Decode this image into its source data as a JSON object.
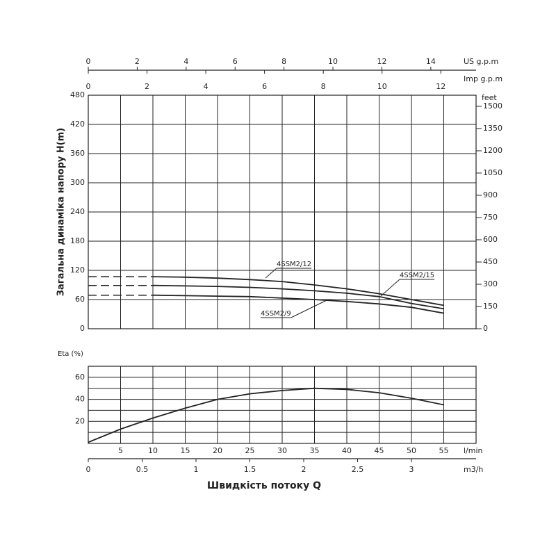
{
  "chart_data": [
    {
      "type": "line",
      "ylabel": "Загальна динаміка напору H(m)",
      "xlim": [
        0,
        60
      ],
      "xgrid": [
        5,
        10,
        15,
        20,
        25,
        30,
        35,
        40,
        45,
        50,
        55
      ],
      "ylim": [
        0,
        480
      ],
      "yticks": [
        0,
        60,
        120,
        180,
        240,
        300,
        360,
        420,
        480
      ],
      "y2label": "feet",
      "y2lim": [
        0,
        1574.8
      ],
      "y2ticks": [
        0,
        150,
        300,
        450,
        600,
        750,
        900,
        1050,
        1200,
        1350,
        1500
      ],
      "top_axes": [
        {
          "label": "US g.p.m",
          "lim": [
            0,
            15.85
          ],
          "ticks": [
            0,
            2,
            4,
            6,
            8,
            10,
            12,
            14
          ]
        },
        {
          "label": "Imp g.p.m",
          "lim": [
            0,
            13.2
          ],
          "ticks": [
            0,
            2,
            4,
            6,
            8,
            10,
            12
          ]
        }
      ],
      "dashed_start": true,
      "x": [
        10,
        15,
        20,
        25,
        30,
        35,
        40,
        45,
        50,
        55
      ],
      "series": [
        {
          "name": "4SSM2/15",
          "color": "#222222",
          "values": [
            107,
            106,
            104,
            101,
            97,
            90,
            82,
            72,
            60,
            48
          ]
        },
        {
          "name": "4SSM2/12",
          "color": "#222222",
          "values": [
            89,
            88,
            87,
            85,
            82,
            78,
            73,
            66,
            52,
            41
          ]
        },
        {
          "name": "4SSM2/9",
          "color": "#222222",
          "values": [
            69,
            68,
            67,
            66,
            63,
            60,
            56,
            51,
            44,
            32
          ]
        }
      ]
    },
    {
      "type": "line",
      "ylabel": "Eta (%)",
      "xlim": [
        0,
        60
      ],
      "xticks": [
        5,
        10,
        15,
        20,
        25,
        30,
        35,
        40,
        45,
        50,
        55
      ],
      "xlabel": "l/min",
      "x2label": "m3/h",
      "x2lim": [
        0,
        3.6
      ],
      "x2ticks": [
        0,
        0.5,
        1,
        1.5,
        2,
        2.5,
        3
      ],
      "ylim": [
        0,
        70
      ],
      "yticks": [
        20,
        40,
        60
      ],
      "minor_grid": [
        10,
        30,
        50
      ],
      "title": "Швидкість потоку Q",
      "x": [
        0,
        5,
        10,
        15,
        20,
        25,
        30,
        35,
        40,
        45,
        50,
        55
      ],
      "series": [
        {
          "color": "#222222",
          "values": [
            1,
            13,
            23,
            32,
            40,
            45,
            48,
            50,
            49,
            46,
            41,
            35
          ]
        }
      ]
    }
  ]
}
